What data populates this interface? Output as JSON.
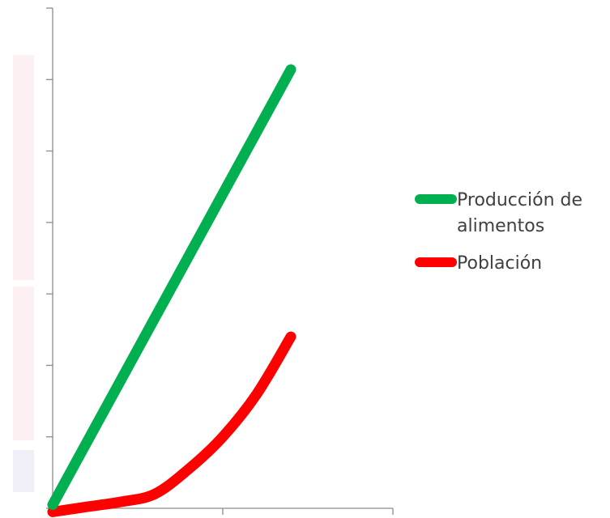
{
  "chart_data": {
    "type": "line",
    "title": "",
    "xlabel": "",
    "ylabel": "",
    "x": [
      0,
      1,
      2,
      3,
      4,
      5,
      6,
      7
    ],
    "xlim": [
      0,
      10
    ],
    "ylim": [
      0,
      7
    ],
    "grid": false,
    "legend_position": "right",
    "series": [
      {
        "name": "Producción de alimentos",
        "color": "#00b050",
        "values": [
          0.05,
          0.92,
          1.79,
          2.66,
          3.53,
          4.4,
          5.27,
          6.14
        ]
      },
      {
        "name": "Población",
        "color": "#ff0000",
        "values": [
          -0.05,
          0.02,
          0.09,
          0.2,
          0.55,
          1.0,
          1.6,
          2.4
        ]
      }
    ]
  },
  "legend": {
    "items": [
      {
        "label": "Producción de alimentos",
        "color": "#00b050"
      },
      {
        "label": "Población",
        "color": "#ff0000"
      }
    ]
  },
  "colors": {
    "axis": "#8c8c8c",
    "background": "#ffffff"
  }
}
